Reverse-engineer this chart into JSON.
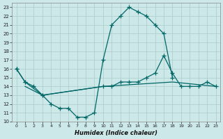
{
  "xlabel": "Humidex (Indice chaleur)",
  "xlim": [
    -0.5,
    23.5
  ],
  "ylim": [
    10,
    23.5
  ],
  "yticks": [
    10,
    11,
    12,
    13,
    14,
    15,
    16,
    17,
    18,
    19,
    20,
    21,
    22,
    23
  ],
  "xticks": [
    0,
    1,
    2,
    3,
    4,
    5,
    6,
    7,
    8,
    9,
    10,
    11,
    12,
    13,
    14,
    15,
    16,
    17,
    18,
    19,
    20,
    21,
    22,
    23
  ],
  "bg_color": "#cce8e8",
  "grid_color": "#aacccc",
  "line_color": "#006666",
  "curve1_x": [
    0,
    1,
    3,
    4,
    5,
    6,
    7,
    8,
    9,
    10,
    11,
    12,
    13,
    14,
    15,
    16,
    17,
    18
  ],
  "curve1_y": [
    16,
    14.5,
    13,
    12,
    11.5,
    11.5,
    10.5,
    10.5,
    11,
    17,
    21,
    22,
    23,
    22.5,
    22,
    21,
    20,
    15
  ],
  "curve2_x": [
    0,
    1,
    2,
    3,
    10,
    11,
    12,
    13,
    14,
    15,
    16,
    17,
    18,
    19,
    20,
    21,
    22,
    23
  ],
  "curve2_y": [
    16,
    14.5,
    14,
    13,
    14,
    14,
    14.5,
    14.5,
    14.5,
    15,
    15.5,
    17.5,
    15.5,
    14,
    14,
    14,
    14.5,
    14
  ],
  "curve3_x": [
    1,
    3,
    10,
    18,
    23
  ],
  "curve3_y": [
    14,
    13,
    14,
    14.5,
    14
  ]
}
